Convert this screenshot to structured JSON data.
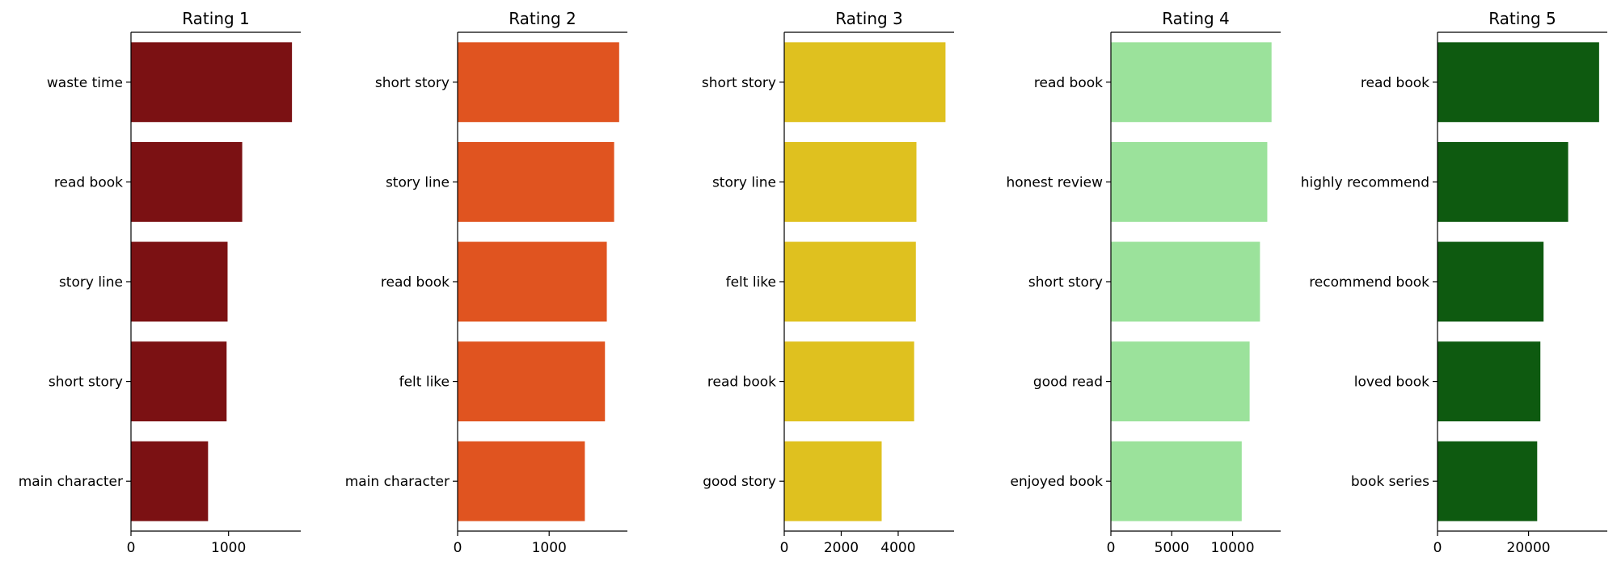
{
  "chart_data": [
    {
      "type": "bar",
      "orientation": "horizontal",
      "title": "Rating 1",
      "color": "#7b1113",
      "categories": [
        "waste time",
        "read book",
        "story line",
        "short story",
        "main character"
      ],
      "values": [
        1650,
        1140,
        990,
        980,
        790
      ],
      "xlim": [
        0,
        1740
      ],
      "xticks": [
        0,
        1000
      ],
      "xtick_labels": [
        "0",
        "1000"
      ],
      "grid": false,
      "legend": "none"
    },
    {
      "type": "bar",
      "orientation": "horizontal",
      "title": "Rating 2",
      "color": "#e05420",
      "categories": [
        "short story",
        "story line",
        "read book",
        "felt like",
        "main character"
      ],
      "values": [
        1765,
        1710,
        1630,
        1610,
        1390
      ],
      "xlim": [
        0,
        1855
      ],
      "xticks": [
        0,
        1000
      ],
      "xtick_labels": [
        "0",
        "1000"
      ],
      "grid": false,
      "legend": "none"
    },
    {
      "type": "bar",
      "orientation": "horizontal",
      "title": "Rating 3",
      "color": "#dfc11f",
      "categories": [
        "short story",
        "story line",
        "felt like",
        "read book",
        "good story"
      ],
      "values": [
        5660,
        4640,
        4620,
        4560,
        3420
      ],
      "xlim": [
        0,
        5960
      ],
      "xticks": [
        0,
        2000,
        4000
      ],
      "xtick_labels": [
        "0",
        "2000",
        "4000"
      ],
      "grid": false,
      "legend": "none"
    },
    {
      "type": "bar",
      "orientation": "horizontal",
      "title": "Rating 4",
      "color": "#9be29b",
      "categories": [
        "read book",
        "honest review",
        "short story",
        "good read",
        "enjoyed book"
      ],
      "values": [
        13200,
        12850,
        12250,
        11400,
        10750
      ],
      "xlim": [
        0,
        13950
      ],
      "xticks": [
        0,
        5000,
        10000
      ],
      "xtick_labels": [
        "0",
        "5000",
        "10000"
      ],
      "grid": false,
      "legend": "none"
    },
    {
      "type": "bar",
      "orientation": "horizontal",
      "title": "Rating 5",
      "color": "#0e5a10",
      "categories": [
        "read book",
        "highly recommend",
        "recommend book",
        "loved book",
        "book series"
      ],
      "values": [
        35500,
        28700,
        23300,
        22600,
        21900
      ],
      "xlim": [
        0,
        37300
      ],
      "xticks": [
        0,
        20000
      ],
      "xtick_labels": [
        "0",
        "20000"
      ],
      "grid": false,
      "legend": "none"
    }
  ]
}
